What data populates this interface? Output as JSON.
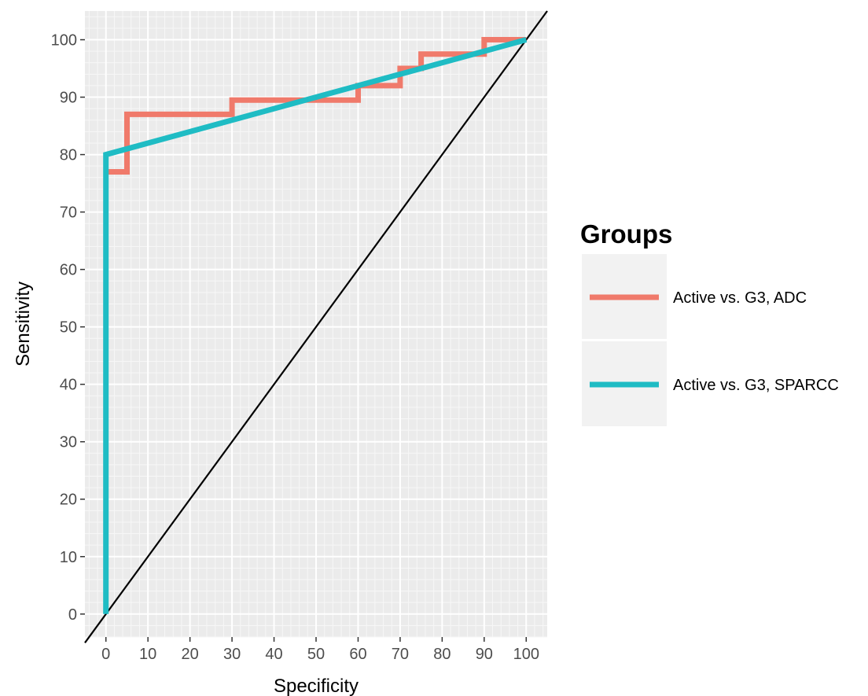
{
  "chart_data": {
    "type": "line",
    "xlabel": "Specificity",
    "ylabel": "Sensitivity",
    "xlim": [
      -5,
      105
    ],
    "ylim": [
      -4,
      105
    ],
    "x_ticks": [
      0,
      10,
      20,
      30,
      40,
      50,
      60,
      70,
      80,
      90,
      100
    ],
    "y_ticks": [
      0,
      10,
      20,
      30,
      40,
      50,
      60,
      70,
      80,
      90,
      100
    ],
    "grid": true,
    "legend": {
      "title": "Groups",
      "placement": "right"
    },
    "series": [
      {
        "name": "Active vs. G3, ADC",
        "color": "#f07a6b",
        "x": [
          0,
          5,
          5,
          30,
          30,
          60,
          60,
          70,
          70,
          75,
          75,
          90,
          90,
          100
        ],
        "y": [
          77,
          77,
          87,
          87,
          89.5,
          89.5,
          92,
          92,
          95,
          95,
          97.5,
          97.5,
          100,
          100
        ]
      },
      {
        "name": "Active vs. G3, SPARCC",
        "color": "#1fbcc4",
        "x": [
          0,
          0,
          100
        ],
        "y": [
          0,
          80,
          100
        ]
      }
    ],
    "reference_line": {
      "x": [
        -5,
        105
      ],
      "y": [
        -5,
        105
      ],
      "color": "#000000"
    }
  }
}
